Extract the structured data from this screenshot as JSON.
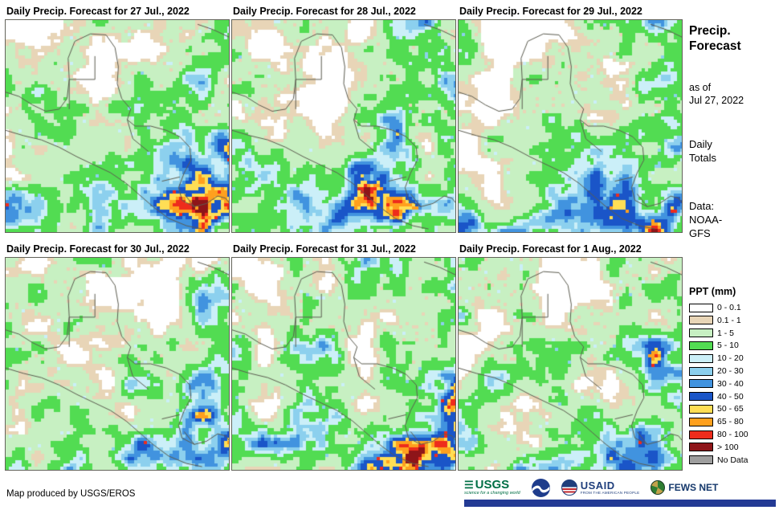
{
  "panels": [
    {
      "title": "Daily Precip. Forecast for 27 Jul., 2022"
    },
    {
      "title": "Daily Precip. Forecast for 28 Jul., 2022"
    },
    {
      "title": "Daily Precip. Forecast for 29 Jul., 2022"
    },
    {
      "title": "Daily Precip. Forecast for 30 Jul., 2022"
    },
    {
      "title": "Daily Precip. Forecast for 31 Jul., 2022"
    },
    {
      "title": "Daily Precip. Forecast for 1 Aug., 2022"
    }
  ],
  "sidebar": {
    "title_line1": "Precip.",
    "title_line2": "Forecast",
    "as_of_label": "as of",
    "as_of_date": "Jul 27, 2022",
    "totals_line1": "Daily",
    "totals_line2": "Totals",
    "data_label": "Data:",
    "data_source_line1": "NOAA-",
    "data_source_line2": "GFS"
  },
  "legend": {
    "title": "PPT (mm)",
    "entries": [
      {
        "label": "0 - 0.1",
        "color": "#FFFFFF"
      },
      {
        "label": "0.1 - 1",
        "color": "#E8D5B7"
      },
      {
        "label": "1 - 5",
        "color": "#C7F0C2"
      },
      {
        "label": "5 - 10",
        "color": "#52DC52"
      },
      {
        "label": "10 - 20",
        "color": "#CBEFF8"
      },
      {
        "label": "20 - 30",
        "color": "#8CD0EE"
      },
      {
        "label": "30 - 40",
        "color": "#4193DF"
      },
      {
        "label": "40 - 50",
        "color": "#1A55C8"
      },
      {
        "label": "50 - 65",
        "color": "#FFDE55"
      },
      {
        "label": "65 - 80",
        "color": "#FFA01E"
      },
      {
        "label": "80 - 100",
        "color": "#EE2C1C"
      },
      {
        "label": "> 100",
        "color": "#8E1519"
      },
      {
        "label": "No Data",
        "color": "#9E9E9E"
      }
    ]
  },
  "footer": {
    "credit": "Map produced by USGS/EROS",
    "banner_color": "#233A94",
    "logos": {
      "usgs": {
        "name": "USGS",
        "tagline": "science for a changing world"
      },
      "noaa": {
        "name": "NOAA"
      },
      "usaid": {
        "name": "USAID",
        "tagline": "FROM THE AMERICAN PEOPLE"
      },
      "fewsnet": {
        "name": "FEWS NET"
      }
    }
  }
}
